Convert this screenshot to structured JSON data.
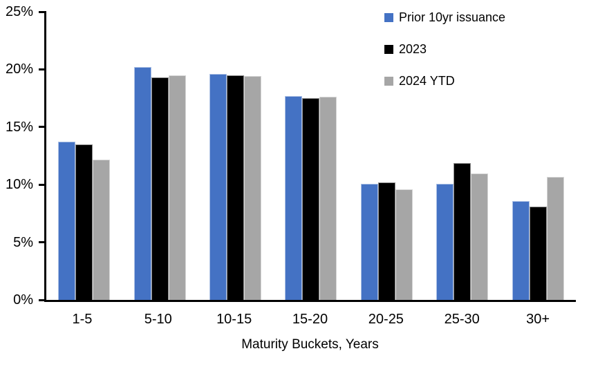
{
  "chart_data": {
    "type": "bar",
    "categories": [
      "1-5",
      "5-10",
      "10-15",
      "15-20",
      "20-25",
      "25-30",
      "30+"
    ],
    "series": [
      {
        "name": "Prior 10yr issuance",
        "color": "#4472C4",
        "values": [
          13.7,
          20.2,
          19.6,
          17.7,
          10.1,
          10.1,
          8.6
        ]
      },
      {
        "name": "2023",
        "color": "#000000",
        "values": [
          13.5,
          19.3,
          19.5,
          17.5,
          10.2,
          11.9,
          8.1
        ]
      },
      {
        "name": "2024 YTD",
        "color": "#A6A6A6",
        "values": [
          12.2,
          19.5,
          19.4,
          17.6,
          9.6,
          11.0,
          10.7
        ]
      }
    ],
    "xlabel": "Maturity Buckets, Years",
    "ylim": [
      0,
      25
    ],
    "yticks": [
      {
        "label": "0%",
        "value": 0
      },
      {
        "label": "5%",
        "value": 5
      },
      {
        "label": "10%",
        "value": 10
      },
      {
        "label": "15%",
        "value": 15
      },
      {
        "label": "20%",
        "value": 20
      },
      {
        "label": "25%",
        "value": 25
      }
    ],
    "grid": false,
    "legend_position": "top-right",
    "axis_color": "#000000"
  }
}
